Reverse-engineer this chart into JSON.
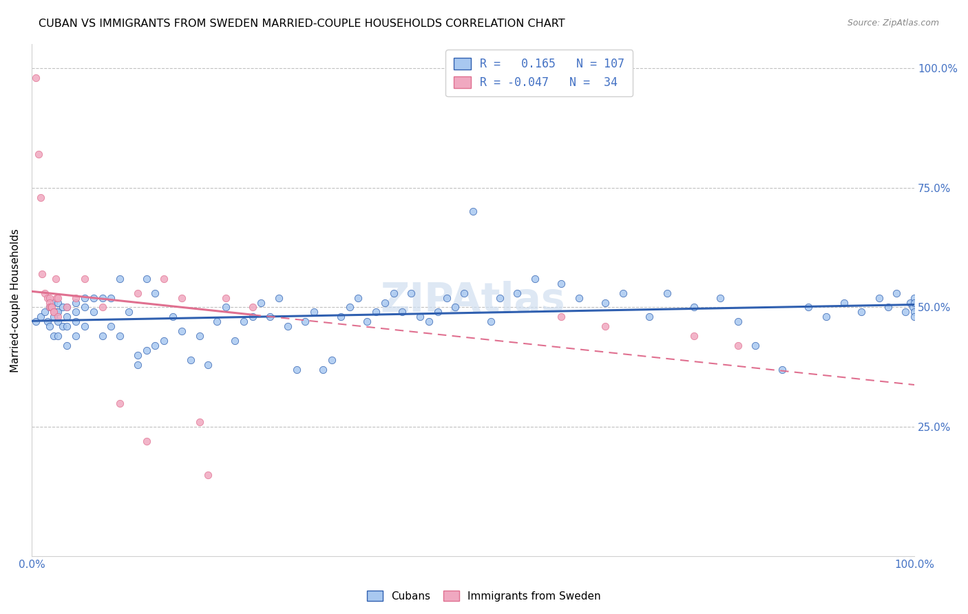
{
  "title": "CUBAN VS IMMIGRANTS FROM SWEDEN MARRIED-COUPLE HOUSEHOLDS CORRELATION CHART",
  "source": "Source: ZipAtlas.com",
  "ylabel": "Married-couple Households",
  "xlim": [
    0.0,
    1.0
  ],
  "ylim": [
    -0.02,
    1.05
  ],
  "legend_r_cubans": "0.165",
  "legend_n_cubans": "107",
  "legend_r_sweden": "-0.047",
  "legend_n_sweden": "34",
  "cubans_color": "#a8c8f0",
  "sweden_color": "#f0a8c0",
  "trendline_cubans_color": "#3060b0",
  "trendline_sweden_color": "#e07090",
  "watermark": "ZIPAtlas",
  "cubans_x": [
    0.005,
    0.01,
    0.015,
    0.018,
    0.02,
    0.02,
    0.025,
    0.025,
    0.025,
    0.028,
    0.03,
    0.03,
    0.03,
    0.03,
    0.035,
    0.035,
    0.04,
    0.04,
    0.04,
    0.04,
    0.05,
    0.05,
    0.05,
    0.05,
    0.06,
    0.06,
    0.06,
    0.07,
    0.07,
    0.08,
    0.08,
    0.09,
    0.09,
    0.1,
    0.1,
    0.11,
    0.12,
    0.12,
    0.13,
    0.13,
    0.14,
    0.14,
    0.15,
    0.16,
    0.17,
    0.18,
    0.19,
    0.2,
    0.21,
    0.22,
    0.23,
    0.24,
    0.25,
    0.26,
    0.27,
    0.28,
    0.29,
    0.3,
    0.31,
    0.32,
    0.33,
    0.34,
    0.35,
    0.36,
    0.37,
    0.38,
    0.39,
    0.4,
    0.41,
    0.42,
    0.43,
    0.44,
    0.45,
    0.46,
    0.47,
    0.48,
    0.49,
    0.5,
    0.52,
    0.53,
    0.55,
    0.57,
    0.6,
    0.62,
    0.65,
    0.67,
    0.7,
    0.72,
    0.75,
    0.78,
    0.8,
    0.82,
    0.85,
    0.88,
    0.9,
    0.92,
    0.94,
    0.96,
    0.97,
    0.98,
    0.99,
    0.995,
    0.998,
    1.0,
    1.0,
    1.0,
    1.0
  ],
  "cubans_y": [
    0.47,
    0.48,
    0.49,
    0.47,
    0.46,
    0.5,
    0.44,
    0.48,
    0.51,
    0.49,
    0.44,
    0.47,
    0.49,
    0.51,
    0.46,
    0.5,
    0.42,
    0.46,
    0.48,
    0.5,
    0.44,
    0.47,
    0.49,
    0.51,
    0.46,
    0.5,
    0.52,
    0.49,
    0.52,
    0.44,
    0.52,
    0.46,
    0.52,
    0.44,
    0.56,
    0.49,
    0.38,
    0.4,
    0.41,
    0.56,
    0.42,
    0.53,
    0.43,
    0.48,
    0.45,
    0.39,
    0.44,
    0.38,
    0.47,
    0.5,
    0.43,
    0.47,
    0.48,
    0.51,
    0.48,
    0.52,
    0.46,
    0.37,
    0.47,
    0.49,
    0.37,
    0.39,
    0.48,
    0.5,
    0.52,
    0.47,
    0.49,
    0.51,
    0.53,
    0.49,
    0.53,
    0.48,
    0.47,
    0.49,
    0.52,
    0.5,
    0.53,
    0.7,
    0.47,
    0.52,
    0.53,
    0.56,
    0.55,
    0.52,
    0.51,
    0.53,
    0.48,
    0.53,
    0.5,
    0.52,
    0.47,
    0.42,
    0.37,
    0.5,
    0.48,
    0.51,
    0.49,
    0.52,
    0.5,
    0.53,
    0.49,
    0.51,
    0.5,
    0.49,
    0.52,
    0.48,
    0.51
  ],
  "sweden_x": [
    0.005,
    0.008,
    0.01,
    0.012,
    0.015,
    0.018,
    0.02,
    0.02,
    0.02,
    0.022,
    0.023,
    0.025,
    0.025,
    0.027,
    0.028,
    0.03,
    0.03,
    0.04,
    0.05,
    0.06,
    0.08,
    0.1,
    0.12,
    0.13,
    0.15,
    0.17,
    0.19,
    0.2,
    0.22,
    0.25,
    0.6,
    0.65,
    0.75,
    0.8
  ],
  "sweden_y": [
    0.98,
    0.82,
    0.73,
    0.57,
    0.53,
    0.52,
    0.52,
    0.51,
    0.5,
    0.5,
    0.5,
    0.49,
    0.49,
    0.56,
    0.52,
    0.48,
    0.52,
    0.5,
    0.52,
    0.56,
    0.5,
    0.3,
    0.53,
    0.22,
    0.56,
    0.52,
    0.26,
    0.15,
    0.52,
    0.5,
    0.48,
    0.46,
    0.44,
    0.42
  ]
}
